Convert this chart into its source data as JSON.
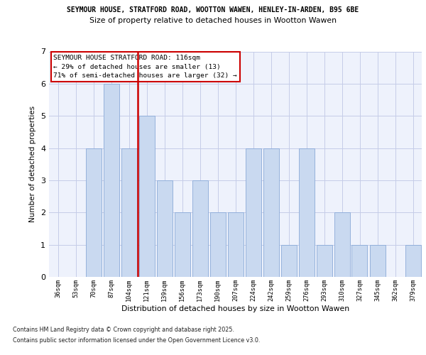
{
  "title_line1": "SEYMOUR HOUSE, STRATFORD ROAD, WOOTTON WAWEN, HENLEY-IN-ARDEN, B95 6BE",
  "title_line2": "Size of property relative to detached houses in Wootton Wawen",
  "xlabel": "Distribution of detached houses by size in Wootton Wawen",
  "ylabel": "Number of detached properties",
  "categories": [
    "36sqm",
    "53sqm",
    "70sqm",
    "87sqm",
    "104sqm",
    "121sqm",
    "139sqm",
    "156sqm",
    "173sqm",
    "190sqm",
    "207sqm",
    "224sqm",
    "242sqm",
    "259sqm",
    "276sqm",
    "293sqm",
    "310sqm",
    "327sqm",
    "345sqm",
    "362sqm",
    "379sqm"
  ],
  "values": [
    0,
    0,
    4,
    6,
    4,
    5,
    3,
    2,
    3,
    2,
    2,
    4,
    4,
    1,
    4,
    1,
    2,
    1,
    1,
    0,
    1
  ],
  "bar_color": "#c9d9f0",
  "bar_edgecolor": "#8aaad8",
  "vline_x_index": 4,
  "annotation_text": "SEYMOUR HOUSE STRATFORD ROAD: 116sqm\n← 29% of detached houses are smaller (13)\n71% of semi-detached houses are larger (32) →",
  "annotation_box_facecolor": "#ffffff",
  "annotation_box_edgecolor": "#cc0000",
  "vline_color": "#cc0000",
  "ylim": [
    0,
    7
  ],
  "yticks": [
    0,
    1,
    2,
    3,
    4,
    5,
    6,
    7
  ],
  "footnote_line1": "Contains HM Land Registry data © Crown copyright and database right 2025.",
  "footnote_line2": "Contains public sector information licensed under the Open Government Licence v3.0.",
  "bg_color": "#eef2fc",
  "grid_color": "#c5cce8"
}
